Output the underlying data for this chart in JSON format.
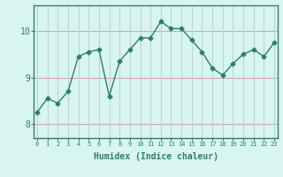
{
  "x": [
    0,
    1,
    2,
    3,
    4,
    5,
    6,
    7,
    8,
    9,
    10,
    11,
    12,
    13,
    14,
    15,
    16,
    17,
    18,
    19,
    20,
    21,
    22,
    23
  ],
  "y": [
    8.25,
    8.55,
    8.45,
    8.7,
    9.45,
    9.55,
    9.6,
    8.6,
    9.35,
    9.6,
    9.85,
    9.85,
    10.2,
    10.05,
    10.05,
    9.8,
    9.55,
    9.2,
    9.05,
    9.3,
    9.5,
    9.6,
    9.45,
    9.75
  ],
  "line_color": "#2e7d6e",
  "marker": "D",
  "marker_size": 2.5,
  "line_width": 1.0,
  "bg_color": "#d8f5f0",
  "grid_color_horizontal": "#d4a8a8",
  "grid_color_vertical": "#b8d8d4",
  "xlabel": "Humidex (Indice chaleur)",
  "xlabel_fontsize": 7,
  "yticks": [
    8,
    9,
    10
  ],
  "xticks": [
    0,
    1,
    2,
    3,
    4,
    5,
    6,
    7,
    8,
    9,
    10,
    11,
    12,
    13,
    14,
    15,
    16,
    17,
    18,
    19,
    20,
    21,
    22,
    23
  ],
  "ylim": [
    7.7,
    10.55
  ],
  "xlim": [
    -0.3,
    23.3
  ]
}
